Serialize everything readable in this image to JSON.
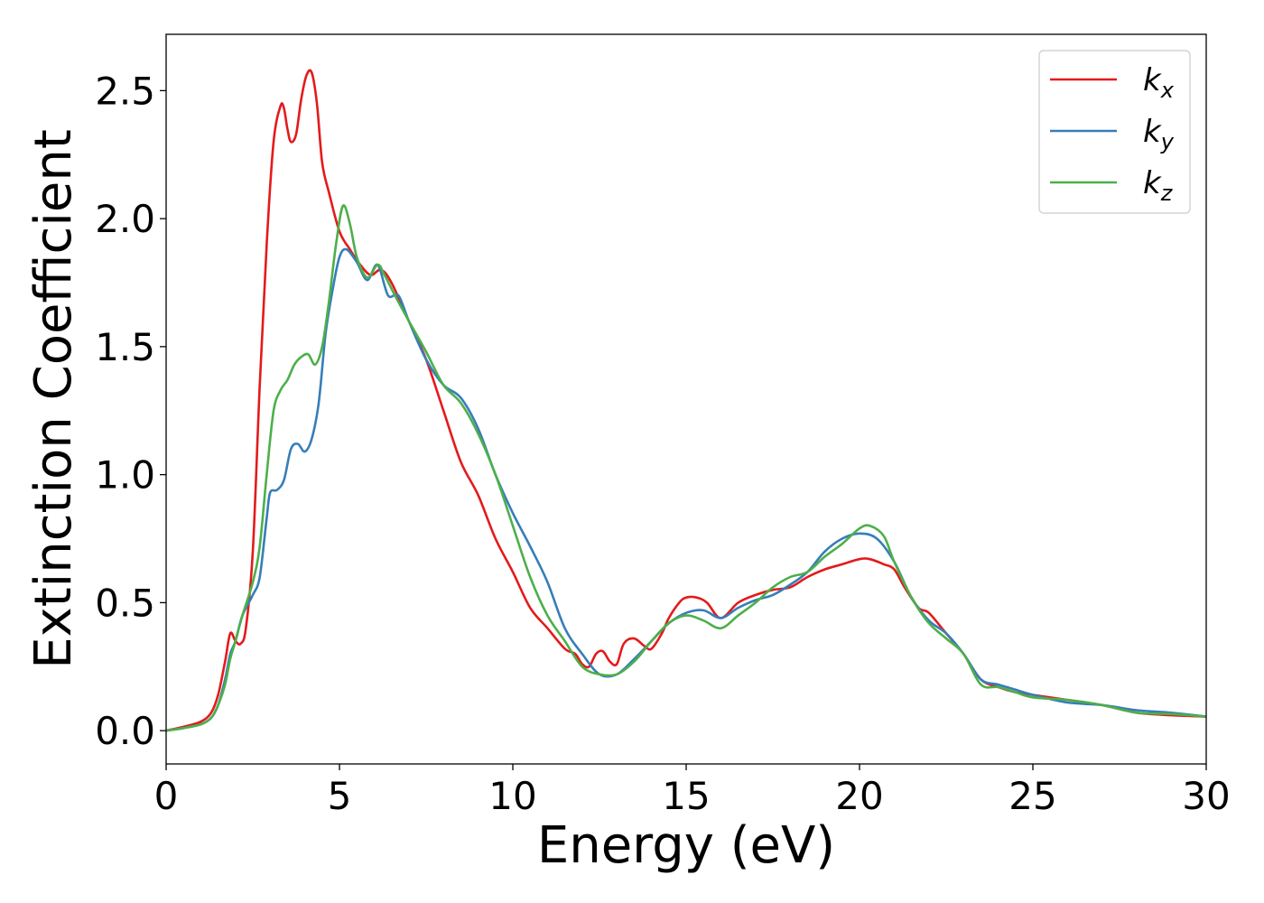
{
  "chart_data": {
    "type": "line",
    "title": "",
    "xlabel": "Energy (eV)",
    "ylabel": "Extinction Coefficient",
    "xlim": [
      0,
      30
    ],
    "ylim": [
      -0.13,
      2.72
    ],
    "xticks": [
      0,
      5,
      10,
      15,
      20,
      25,
      30
    ],
    "xtick_labels": [
      "0",
      "5",
      "10",
      "15",
      "20",
      "25",
      "30"
    ],
    "yticks": [
      0.0,
      0.5,
      1.0,
      1.5,
      2.0,
      2.5
    ],
    "ytick_labels": [
      "0.0",
      "0.5",
      "1.0",
      "1.5",
      "2.0",
      "2.5"
    ],
    "grid": false,
    "legend_position": "top-right",
    "series": [
      {
        "name": "k_x",
        "label_main": "k",
        "label_sub": "x",
        "color": "#e41a1c",
        "x": [
          0,
          0.5,
          1.0,
          1.3,
          1.5,
          1.7,
          1.85,
          2.0,
          2.15,
          2.3,
          2.5,
          2.7,
          2.9,
          3.1,
          3.3,
          3.4,
          3.5,
          3.6,
          3.75,
          3.9,
          4.05,
          4.2,
          4.35,
          4.5,
          4.7,
          5.0,
          5.3,
          5.6,
          5.9,
          6.2,
          6.5,
          7.0,
          7.5,
          8.0,
          8.5,
          9.0,
          9.5,
          10.0,
          10.5,
          11.0,
          11.5,
          11.8,
          12.0,
          12.2,
          12.4,
          12.6,
          12.8,
          13.0,
          13.2,
          13.5,
          13.8,
          14.0,
          14.3,
          14.5,
          14.8,
          15.0,
          15.3,
          15.6,
          16.0,
          16.5,
          17.0,
          17.5,
          18.0,
          18.5,
          19.0,
          19.5,
          20.0,
          20.3,
          20.7,
          21.0,
          21.3,
          21.7,
          22.0,
          22.5,
          23.0,
          23.5,
          24.0,
          24.5,
          25.0,
          26.0,
          27.0,
          28.0,
          29.0,
          30.0
        ],
        "y": [
          0.0,
          0.015,
          0.035,
          0.07,
          0.14,
          0.27,
          0.38,
          0.35,
          0.34,
          0.4,
          0.7,
          1.35,
          1.9,
          2.3,
          2.44,
          2.43,
          2.35,
          2.3,
          2.33,
          2.47,
          2.56,
          2.57,
          2.45,
          2.22,
          2.1,
          1.95,
          1.88,
          1.82,
          1.78,
          1.8,
          1.75,
          1.6,
          1.45,
          1.25,
          1.05,
          0.92,
          0.75,
          0.62,
          0.48,
          0.4,
          0.32,
          0.3,
          0.26,
          0.25,
          0.3,
          0.31,
          0.27,
          0.26,
          0.34,
          0.36,
          0.33,
          0.32,
          0.38,
          0.44,
          0.5,
          0.52,
          0.52,
          0.5,
          0.44,
          0.5,
          0.53,
          0.55,
          0.56,
          0.6,
          0.63,
          0.65,
          0.67,
          0.67,
          0.65,
          0.63,
          0.56,
          0.48,
          0.46,
          0.38,
          0.3,
          0.2,
          0.17,
          0.15,
          0.14,
          0.12,
          0.1,
          0.07,
          0.06,
          0.055
        ]
      },
      {
        "name": "k_y",
        "label_main": "k",
        "label_sub": "y",
        "color": "#377eb8",
        "x": [
          0,
          0.5,
          1.0,
          1.3,
          1.5,
          1.7,
          1.85,
          2.0,
          2.2,
          2.5,
          2.7,
          2.9,
          3.0,
          3.2,
          3.4,
          3.6,
          3.8,
          4.0,
          4.2,
          4.4,
          4.6,
          4.8,
          5.0,
          5.2,
          5.5,
          5.8,
          6.1,
          6.4,
          6.7,
          7.0,
          7.5,
          8.0,
          8.5,
          9.0,
          9.5,
          10.0,
          10.5,
          11.0,
          11.5,
          12.0,
          12.5,
          13.0,
          13.5,
          14.0,
          14.5,
          15.0,
          15.5,
          16.0,
          16.5,
          17.0,
          17.5,
          18.0,
          18.5,
          19.0,
          19.5,
          20.0,
          20.5,
          21.0,
          21.5,
          22.0,
          22.5,
          23.0,
          23.5,
          24.0,
          24.5,
          25.0,
          26.0,
          27.0,
          28.0,
          29.0,
          30.0
        ],
        "y": [
          0.0,
          0.01,
          0.025,
          0.05,
          0.1,
          0.2,
          0.3,
          0.35,
          0.45,
          0.53,
          0.6,
          0.83,
          0.93,
          0.94,
          0.98,
          1.1,
          1.12,
          1.09,
          1.14,
          1.28,
          1.55,
          1.72,
          1.85,
          1.88,
          1.83,
          1.76,
          1.82,
          1.7,
          1.7,
          1.6,
          1.45,
          1.35,
          1.3,
          1.18,
          1.0,
          0.85,
          0.72,
          0.58,
          0.4,
          0.3,
          0.22,
          0.22,
          0.28,
          0.35,
          0.42,
          0.46,
          0.47,
          0.44,
          0.48,
          0.51,
          0.53,
          0.57,
          0.62,
          0.7,
          0.75,
          0.77,
          0.75,
          0.66,
          0.52,
          0.43,
          0.38,
          0.3,
          0.2,
          0.18,
          0.16,
          0.14,
          0.11,
          0.1,
          0.08,
          0.07,
          0.055
        ]
      },
      {
        "name": "k_z",
        "label_main": "k",
        "label_sub": "z",
        "color": "#4daf4a",
        "x": [
          0,
          0.5,
          1.0,
          1.3,
          1.5,
          1.7,
          1.85,
          2.0,
          2.2,
          2.5,
          2.7,
          2.9,
          3.1,
          3.3,
          3.5,
          3.7,
          3.9,
          4.1,
          4.3,
          4.5,
          4.7,
          4.9,
          5.1,
          5.3,
          5.5,
          5.8,
          6.1,
          6.3,
          6.6,
          7.0,
          7.5,
          8.0,
          8.5,
          9.0,
          9.5,
          10.0,
          10.5,
          11.0,
          11.5,
          12.0,
          12.5,
          13.0,
          13.5,
          14.0,
          14.5,
          15.0,
          15.5,
          16.0,
          16.5,
          17.0,
          17.5,
          18.0,
          18.5,
          19.0,
          19.5,
          20.0,
          20.3,
          20.7,
          21.0,
          21.5,
          22.0,
          22.5,
          23.0,
          23.5,
          24.0,
          24.5,
          25.0,
          26.0,
          27.0,
          28.0,
          29.0,
          30.0
        ],
        "y": [
          0.0,
          0.01,
          0.025,
          0.05,
          0.1,
          0.18,
          0.28,
          0.35,
          0.45,
          0.58,
          0.72,
          1.0,
          1.25,
          1.33,
          1.37,
          1.43,
          1.46,
          1.47,
          1.43,
          1.5,
          1.68,
          1.9,
          2.05,
          1.98,
          1.85,
          1.77,
          1.82,
          1.78,
          1.7,
          1.6,
          1.48,
          1.35,
          1.28,
          1.16,
          1.0,
          0.8,
          0.6,
          0.45,
          0.35,
          0.25,
          0.22,
          0.22,
          0.27,
          0.35,
          0.42,
          0.45,
          0.43,
          0.4,
          0.45,
          0.5,
          0.56,
          0.6,
          0.62,
          0.68,
          0.73,
          0.79,
          0.8,
          0.76,
          0.66,
          0.52,
          0.42,
          0.36,
          0.3,
          0.18,
          0.17,
          0.15,
          0.13,
          0.12,
          0.1,
          0.07,
          0.065,
          0.055
        ]
      }
    ]
  }
}
